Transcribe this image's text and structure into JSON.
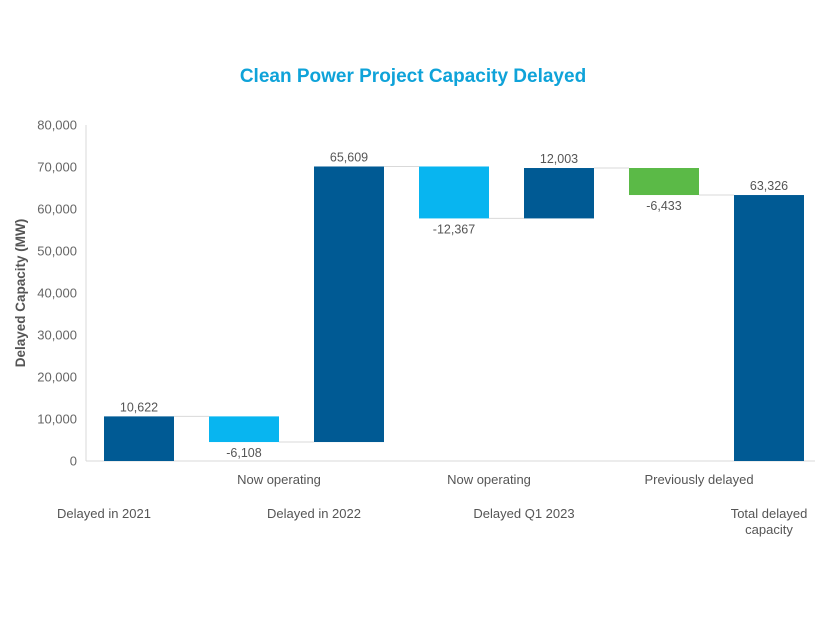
{
  "chart_data": {
    "type": "bar",
    "subtype": "waterfall",
    "title": "Clean Power Project Capacity Delayed",
    "xlabel": "",
    "ylabel": "Delayed Capacity (MW)",
    "ylim": [
      0,
      80000
    ],
    "yticks": [
      0,
      10000,
      20000,
      30000,
      40000,
      50000,
      60000,
      70000,
      80000
    ],
    "ytick_labels": [
      "0",
      "10,000",
      "20,000",
      "30,000",
      "40,000",
      "50,000",
      "60,000",
      "70,000",
      "80,000"
    ],
    "grid": false,
    "legend": "none",
    "categories": [
      "Delayed in 2021",
      "Now operating",
      "Delayed in 2022",
      "Now operating",
      "Delayed Q1 2023",
      "Previously delayed",
      "Total delayed capacity"
    ],
    "category_rows": [
      "lower",
      "upper",
      "lower",
      "upper",
      "lower",
      "upper",
      "lower"
    ],
    "values": [
      10622,
      -6108,
      65609,
      -12367,
      12003,
      -6433,
      63326
    ],
    "labels": [
      "10,622",
      "-6,108",
      "65,609",
      "-12,367",
      "12,003",
      "-6,433",
      "63,326"
    ],
    "kinds": [
      "increase",
      "decrease",
      "increase",
      "decrease",
      "increase",
      "decrease",
      "total"
    ],
    "colors": {
      "increase": "#005A94",
      "decrease_now_operating": "#08B5F0",
      "decrease_previously_delayed": "#5BBA47",
      "total": "#005A94"
    },
    "bar_colors": [
      "#005A94",
      "#08B5F0",
      "#005A94",
      "#08B5F0",
      "#005A94",
      "#5BBA47",
      "#005A94"
    ]
  }
}
